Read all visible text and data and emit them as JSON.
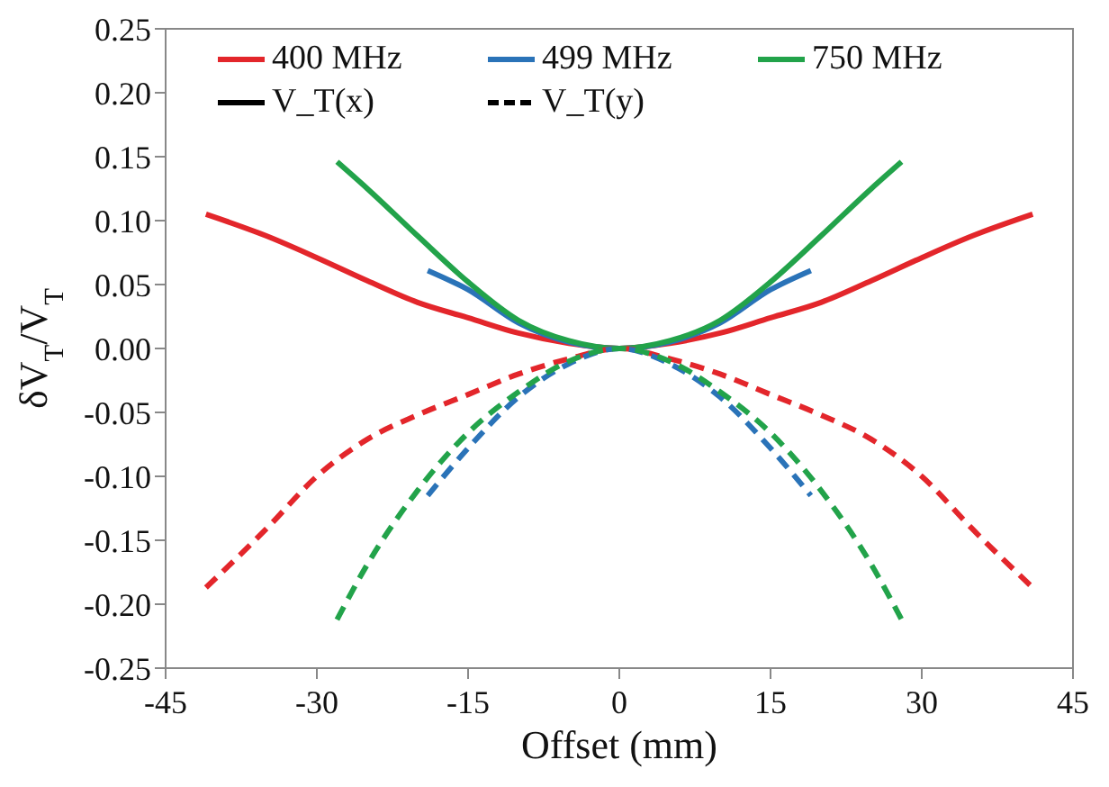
{
  "chart_data": {
    "type": "line",
    "xlabel": "Offset  (mm)",
    "ylabel": "δV$_{T}$/V$_{T}$",
    "xlim": [
      -45,
      45
    ],
    "xticks": [
      -45,
      -30,
      -15,
      0,
      15,
      30,
      45
    ],
    "ylim": [
      -0.25,
      0.25
    ],
    "yticks": [
      {
        "value": 0.25,
        "label": "0.25"
      },
      {
        "value": 0.2,
        "label": "0.20"
      },
      {
        "value": 0.15,
        "label": "0.15"
      },
      {
        "value": 0.1,
        "label": "0.10"
      },
      {
        "value": 0.05,
        "label": "0.05"
      },
      {
        "value": 0,
        "label": "0.00"
      },
      {
        "value": -0.05,
        "label": "-0.05"
      },
      {
        "value": -0.1,
        "label": "-0.10"
      },
      {
        "value": -0.15,
        "label": "-0.15"
      },
      {
        "value": -0.2,
        "label": "-0.20"
      },
      {
        "value": -0.25,
        "label": "-0.25"
      }
    ],
    "grid": false,
    "legend": "top",
    "marker": "none",
    "series": [
      {
        "name": "400 MHz",
        "color": "#e3262b",
        "line_style": "solid",
        "x": [
          -41,
          -35,
          -30,
          -25,
          -20,
          -15,
          -10,
          -5,
          0,
          5,
          10,
          15,
          20,
          25,
          30,
          35,
          41
        ],
        "values": [
          0.105,
          0.088,
          0.071,
          0.053,
          0.036,
          0.024,
          0.012,
          0.004,
          0,
          0.004,
          0.012,
          0.024,
          0.036,
          0.053,
          0.071,
          0.088,
          0.105
        ]
      },
      {
        "name": "499 MHz",
        "color": "#2a73b8",
        "line_style": "solid",
        "x": [
          -19,
          -15,
          -10,
          -5,
          0,
          5,
          10,
          15,
          19
        ],
        "values": [
          0.061,
          0.046,
          0.02,
          0.005,
          0,
          0.005,
          0.02,
          0.046,
          0.061
        ]
      },
      {
        "name": "750 MHz",
        "color": "#22a34a",
        "line_style": "solid",
        "x": [
          -28,
          -25,
          -20,
          -15,
          -10,
          -5,
          0,
          5,
          10,
          15,
          20,
          25,
          28
        ],
        "values": [
          0.146,
          0.125,
          0.088,
          0.052,
          0.022,
          0.006,
          0,
          0.006,
          0.022,
          0.052,
          0.088,
          0.125,
          0.146
        ]
      },
      {
        "name": "V_T(x)",
        "color": "#000000",
        "line_style": "solid"
      },
      {
        "name": "V_T(y)",
        "color": "#000000",
        "line_style": "dashed"
      },
      {
        "color": "#e3262b",
        "line_style": "dashed",
        "x": [
          -41,
          -35,
          -30,
          -25,
          -20,
          -15,
          -10,
          -5,
          0,
          5,
          10,
          15,
          20,
          25,
          30,
          35,
          41
        ],
        "values": [
          -0.187,
          -0.141,
          -0.1,
          -0.071,
          -0.052,
          -0.036,
          -0.02,
          -0.008,
          0,
          -0.008,
          -0.02,
          -0.036,
          -0.052,
          -0.071,
          -0.1,
          -0.141,
          -0.187
        ]
      },
      {
        "color": "#2a73b8",
        "line_style": "dashed",
        "x": [
          -19,
          -15,
          -10,
          -5,
          0,
          5,
          10,
          15,
          19
        ],
        "values": [
          -0.115,
          -0.078,
          -0.038,
          -0.012,
          0,
          -0.012,
          -0.038,
          -0.078,
          -0.115
        ]
      },
      {
        "color": "#22a34a",
        "line_style": "dashed",
        "x": [
          -28,
          -25,
          -20,
          -15,
          -10,
          -5,
          0,
          5,
          10,
          15,
          20,
          25,
          28
        ],
        "values": [
          -0.212,
          -0.169,
          -0.111,
          -0.066,
          -0.034,
          -0.01,
          0,
          -0.01,
          -0.034,
          -0.066,
          -0.111,
          -0.169,
          -0.212
        ]
      }
    ]
  }
}
